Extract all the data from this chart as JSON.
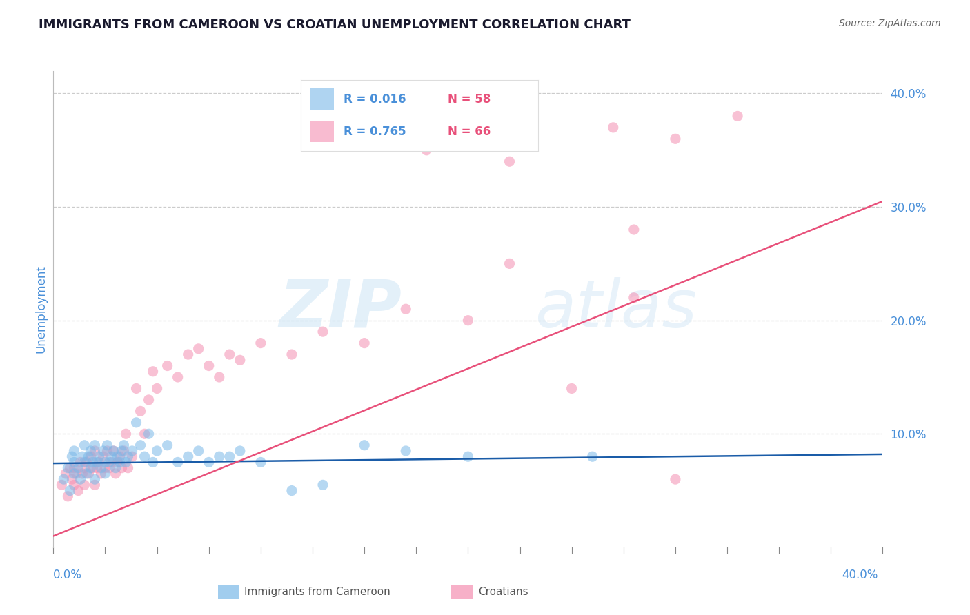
{
  "title": "IMMIGRANTS FROM CAMEROON VS CROATIAN UNEMPLOYMENT CORRELATION CHART",
  "source": "Source: ZipAtlas.com",
  "ylabel": "Unemployment",
  "xmin": 0.0,
  "xmax": 0.4,
  "ymin": 0.0,
  "ymax": 0.42,
  "blue_R": 0.016,
  "blue_N": 58,
  "pink_R": 0.765,
  "pink_N": 66,
  "blue_color": "#7ab8e8",
  "pink_color": "#f48fb1",
  "blue_line_color": "#1a5ca8",
  "pink_line_color": "#e8507a",
  "blue_label": "Immigrants from Cameroon",
  "pink_label": "Croatians",
  "watermark_text": "ZIP",
  "watermark_text2": "atlas",
  "title_color": "#1a1a2e",
  "axis_label_color": "#4a90d9",
  "legend_R_color": "#4a90d9",
  "legend_N_color": "#e8507a",
  "blue_line_y_start": 0.074,
  "blue_line_y_end": 0.082,
  "pink_line_y_start": 0.01,
  "pink_line_y_end": 0.305,
  "blue_scatter_x": [
    0.005,
    0.007,
    0.008,
    0.009,
    0.01,
    0.01,
    0.01,
    0.012,
    0.013,
    0.014,
    0.015,
    0.015,
    0.016,
    0.017,
    0.018,
    0.018,
    0.019,
    0.02,
    0.02,
    0.021,
    0.022,
    0.023,
    0.024,
    0.025,
    0.025,
    0.026,
    0.027,
    0.028,
    0.029,
    0.03,
    0.031,
    0.032,
    0.033,
    0.034,
    0.035,
    0.036,
    0.038,
    0.04,
    0.042,
    0.044,
    0.046,
    0.048,
    0.05,
    0.055,
    0.06,
    0.065,
    0.07,
    0.075,
    0.08,
    0.085,
    0.09,
    0.1,
    0.115,
    0.13,
    0.15,
    0.17,
    0.2,
    0.26
  ],
  "blue_scatter_y": [
    0.06,
    0.07,
    0.05,
    0.08,
    0.065,
    0.075,
    0.085,
    0.07,
    0.06,
    0.08,
    0.075,
    0.09,
    0.065,
    0.08,
    0.07,
    0.085,
    0.075,
    0.06,
    0.09,
    0.075,
    0.08,
    0.07,
    0.085,
    0.075,
    0.065,
    0.09,
    0.075,
    0.08,
    0.085,
    0.07,
    0.08,
    0.075,
    0.085,
    0.09,
    0.075,
    0.08,
    0.085,
    0.11,
    0.09,
    0.08,
    0.1,
    0.075,
    0.085,
    0.09,
    0.075,
    0.08,
    0.085,
    0.075,
    0.08,
    0.08,
    0.085,
    0.075,
    0.05,
    0.055,
    0.09,
    0.085,
    0.08,
    0.08
  ],
  "pink_scatter_x": [
    0.004,
    0.006,
    0.007,
    0.008,
    0.009,
    0.01,
    0.01,
    0.011,
    0.012,
    0.013,
    0.014,
    0.015,
    0.015,
    0.016,
    0.017,
    0.018,
    0.019,
    0.02,
    0.02,
    0.021,
    0.022,
    0.023,
    0.024,
    0.025,
    0.026,
    0.027,
    0.028,
    0.029,
    0.03,
    0.031,
    0.032,
    0.033,
    0.034,
    0.035,
    0.036,
    0.038,
    0.04,
    0.042,
    0.044,
    0.046,
    0.048,
    0.05,
    0.055,
    0.06,
    0.065,
    0.07,
    0.075,
    0.08,
    0.085,
    0.09,
    0.1,
    0.115,
    0.13,
    0.15,
    0.17,
    0.2,
    0.22,
    0.25,
    0.28,
    0.3,
    0.18,
    0.22,
    0.27,
    0.3,
    0.28,
    0.33
  ],
  "pink_scatter_y": [
    0.055,
    0.065,
    0.045,
    0.07,
    0.06,
    0.055,
    0.07,
    0.065,
    0.05,
    0.075,
    0.065,
    0.07,
    0.055,
    0.075,
    0.065,
    0.08,
    0.07,
    0.055,
    0.085,
    0.07,
    0.075,
    0.065,
    0.08,
    0.07,
    0.085,
    0.07,
    0.075,
    0.085,
    0.065,
    0.075,
    0.08,
    0.07,
    0.085,
    0.1,
    0.07,
    0.08,
    0.14,
    0.12,
    0.1,
    0.13,
    0.155,
    0.14,
    0.16,
    0.15,
    0.17,
    0.175,
    0.16,
    0.15,
    0.17,
    0.165,
    0.18,
    0.17,
    0.19,
    0.18,
    0.21,
    0.2,
    0.25,
    0.14,
    0.22,
    0.06,
    0.35,
    0.34,
    0.37,
    0.36,
    0.28,
    0.38
  ]
}
